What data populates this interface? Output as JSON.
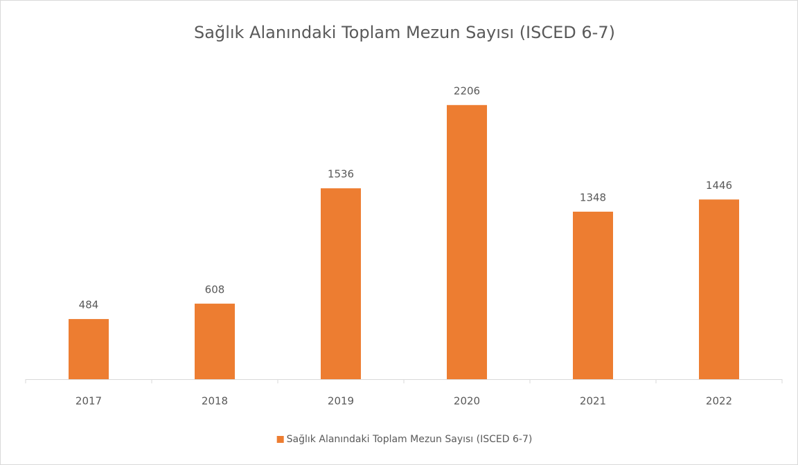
{
  "chart_data": {
    "type": "bar",
    "title": "Sağlık Alanındaki Toplam Mezun Sayısı (ISCED 6-7)",
    "categories": [
      "2017",
      "2018",
      "2019",
      "2020",
      "2021",
      "2022"
    ],
    "series": [
      {
        "name": "Sağlık Alanındaki Toplam Mezun Sayısı (ISCED 6-7)",
        "color": "#ed7d31",
        "values": [
          484,
          608,
          1536,
          2206,
          1348,
          1446
        ]
      }
    ],
    "ylim": [
      0,
      2500
    ],
    "legend": "bottom"
  }
}
